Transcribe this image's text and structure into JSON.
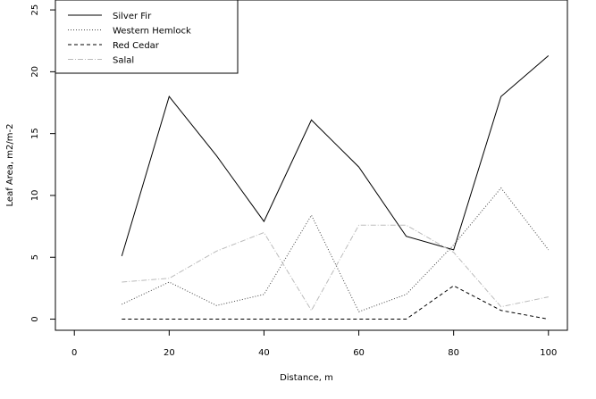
{
  "chart_data": {
    "type": "line",
    "title": "",
    "xlabel": "Distance, m",
    "ylabel": "Leaf Area, m2/m-2",
    "xlim": [
      -4,
      104
    ],
    "ylim": [
      -0.9,
      25.8
    ],
    "xticks": [
      0,
      20,
      40,
      60,
      80,
      100
    ],
    "yticks": [
      0,
      5,
      10,
      15,
      20,
      25
    ],
    "grid": false,
    "legend_position": "top-left",
    "x": [
      10,
      20,
      30,
      40,
      50,
      60,
      70,
      80,
      90,
      100
    ],
    "series": [
      {
        "name": "Silver Fir",
        "color": "#000000",
        "dash": "solid",
        "values": [
          5.1,
          18.0,
          13.2,
          7.9,
          16.1,
          12.3,
          6.7,
          5.6,
          18.0,
          21.3
        ]
      },
      {
        "name": "Western Hemlock",
        "color": "#444444",
        "dash": "dotted",
        "values": [
          1.2,
          3.0,
          1.1,
          2.0,
          8.4,
          0.6,
          2.0,
          6.0,
          10.6,
          5.6
        ]
      },
      {
        "name": "Red Cedar",
        "color": "#000000",
        "dash": "dashed",
        "values": [
          0.0,
          0.0,
          0.0,
          0.0,
          0.0,
          0.0,
          0.0,
          2.7,
          0.7,
          0.0
        ]
      },
      {
        "name": "Salal",
        "color": "#bbbbbb",
        "dash": "dashdot",
        "values": [
          3.0,
          3.3,
          5.5,
          7.0,
          0.7,
          7.6,
          7.6,
          5.4,
          1.0,
          1.8
        ]
      }
    ]
  }
}
